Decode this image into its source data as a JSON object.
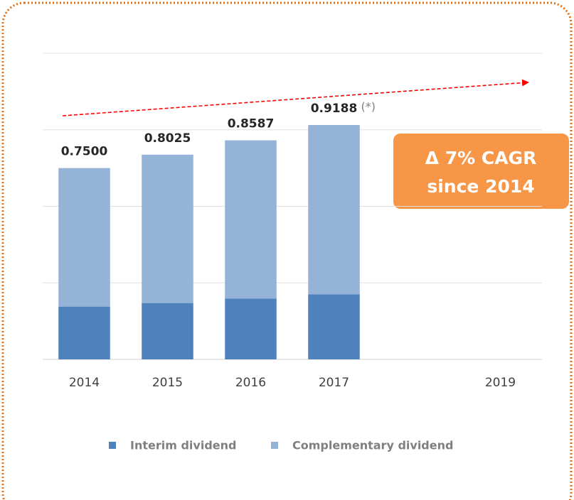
{
  "chart_data": {
    "type": "stacked_bar",
    "categories": [
      "2014",
      "2015",
      "2016",
      "2017",
      null,
      "2019"
    ],
    "series": [
      {
        "name": "Interim dividend",
        "color": "#4f81bd",
        "values": [
          0.207,
          0.221,
          0.238,
          0.255,
          null,
          null
        ]
      },
      {
        "name": "Complementary dividend",
        "color": "#95b3d7",
        "values": [
          0.543,
          0.5815,
          0.6207,
          0.6638,
          null,
          null
        ]
      }
    ],
    "totals": [
      0.75,
      0.8025,
      0.8587,
      0.9188,
      null,
      null
    ],
    "total_labels": [
      "0.7500",
      "0.8025",
      "0.8587",
      "0.9188",
      null,
      null
    ],
    "annotation": "(*)",
    "callout": [
      "Δ 7% CAGR",
      "since 2014"
    ],
    "ylim": [
      0,
      1.2
    ],
    "yticks": [
      0,
      0.3,
      0.6,
      0.9,
      1.2
    ],
    "grid": true,
    "legend": "bottom"
  }
}
